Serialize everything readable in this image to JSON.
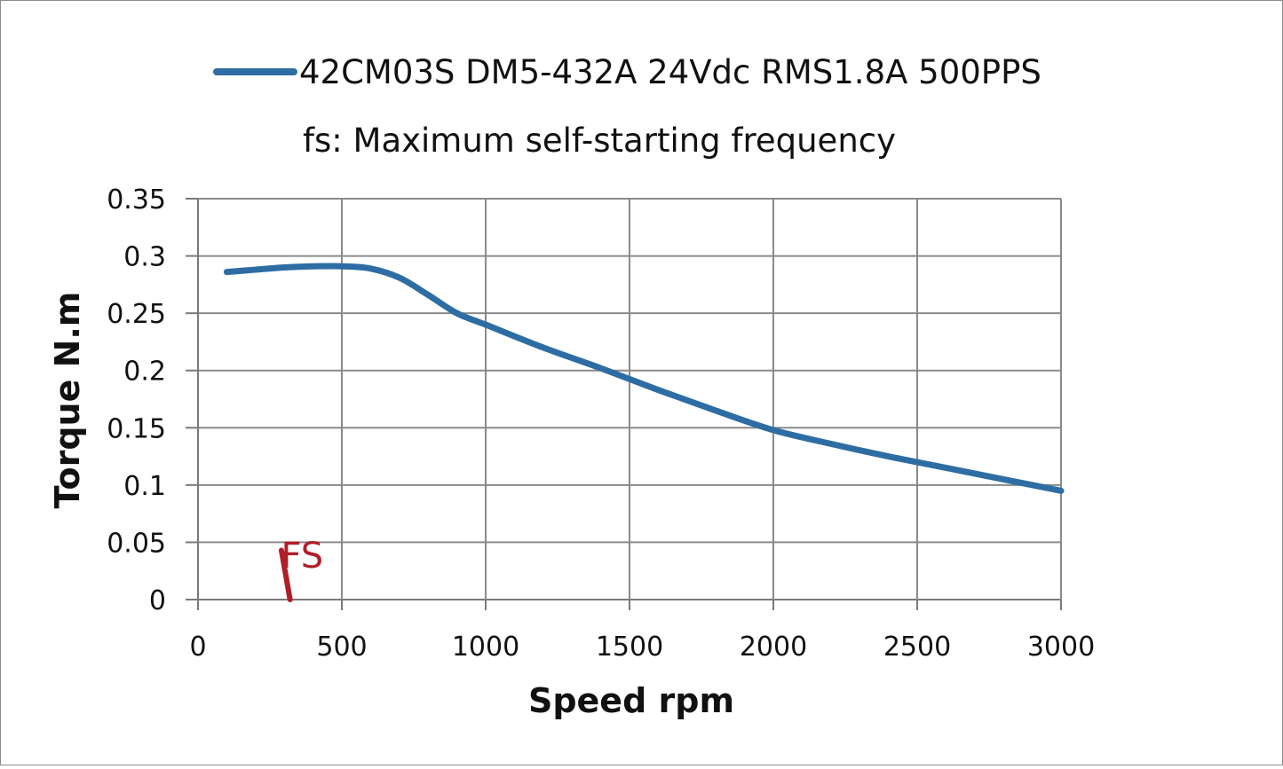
{
  "chart_data": {
    "type": "line",
    "title": "",
    "legend_position": "top",
    "note": "fs: Maximum self-starting frequency",
    "xlabel": "Speed rpm",
    "ylabel": "Torque N.m",
    "xlim": [
      0,
      3000
    ],
    "ylim": [
      0,
      0.35
    ],
    "grid": true,
    "x_ticks": [
      0,
      500,
      1000,
      1500,
      2000,
      2500,
      3000
    ],
    "x_tick_labels": [
      "0",
      "500",
      "1000",
      "1500",
      "2000",
      "2500",
      "3000"
    ],
    "y_ticks": [
      0,
      0.05,
      0.1,
      0.15,
      0.2,
      0.25,
      0.3,
      0.35
    ],
    "y_tick_labels": [
      "0",
      "0.05",
      "0.1",
      "0.15",
      "0.2",
      "0.25",
      "0.3",
      "0.35"
    ],
    "series": [
      {
        "name": "42CM03S DM5-432A 24Vdc RMS1.8A 500PPS",
        "color": "#2e6da4",
        "x": [
          100,
          200,
          300,
          400,
          500,
          600,
          700,
          800,
          900,
          1000,
          1200,
          1400,
          1600,
          1800,
          2000,
          2200,
          2400,
          2600,
          2800,
          3000
        ],
        "y": [
          0.286,
          0.288,
          0.29,
          0.291,
          0.291,
          0.289,
          0.281,
          0.266,
          0.25,
          0.24,
          0.22,
          0.202,
          0.183,
          0.165,
          0.148,
          0.136,
          0.125,
          0.115,
          0.105,
          0.095
        ]
      }
    ],
    "annotations": [
      {
        "text": "FS",
        "color": "#b01e2a",
        "x": 375,
        "y": 0.042,
        "marker_x": [
          290,
          320
        ],
        "marker_y": [
          0.043,
          0.0
        ]
      }
    ]
  }
}
